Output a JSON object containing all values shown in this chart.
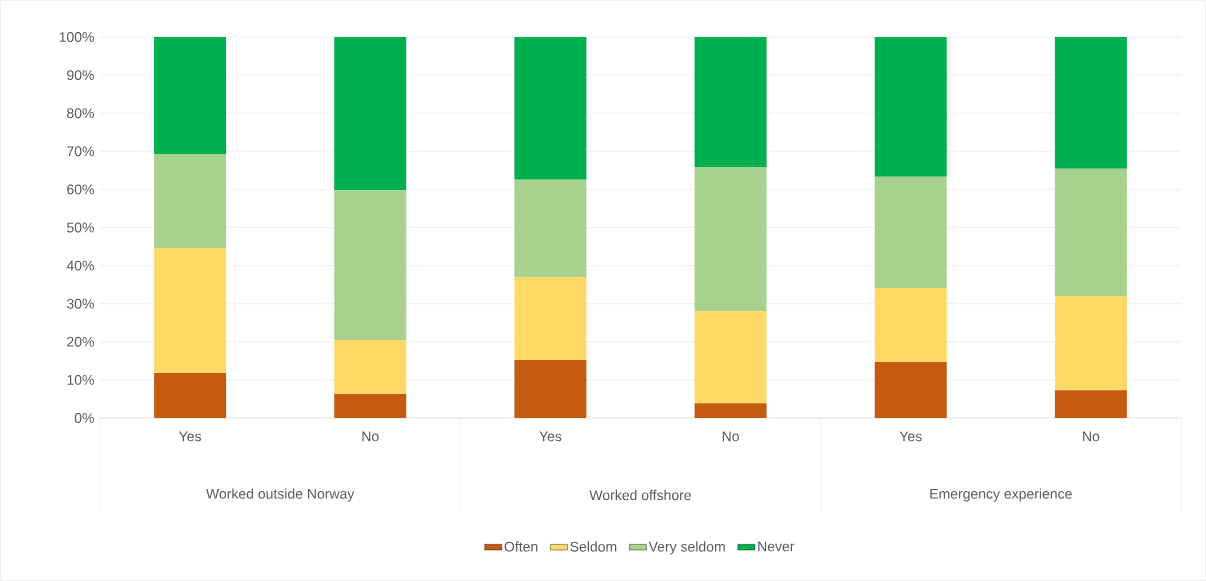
{
  "chart_data": {
    "type": "bar",
    "stacked": true,
    "categories": [
      "Yes",
      "No",
      "Yes",
      "No",
      "Yes",
      "No"
    ],
    "annotations": [
      "Worked outside Norway",
      "Worked offshore",
      "Emergency experience"
    ],
    "series": [
      {
        "name": "Often",
        "color": "#c55a11",
        "values": [
          11.8,
          6.3,
          15.2,
          3.9,
          14.7,
          7.3
        ]
      },
      {
        "name": "Seldom",
        "color": "#ffd966",
        "values": [
          32.8,
          14.2,
          21.8,
          24.2,
          19.4,
          24.7
        ]
      },
      {
        "name": "Very seldom",
        "color": "#a9d18e",
        "values": [
          24.7,
          39.3,
          25.5,
          37.8,
          29.2,
          33.4
        ]
      },
      {
        "name": "Never",
        "color": "#00b050",
        "values": [
          30.7,
          40.2,
          37.5,
          34.1,
          36.7,
          34.6
        ]
      }
    ],
    "ylim": [
      0,
      100
    ],
    "yticks": [
      {
        "value": 0,
        "label": "0%"
      },
      {
        "value": 10,
        "label": "10%"
      },
      {
        "value": 20,
        "label": "20%"
      },
      {
        "value": 30,
        "label": "30%"
      },
      {
        "value": 40,
        "label": "40%"
      },
      {
        "value": 50,
        "label": "50%"
      },
      {
        "value": 60,
        "label": "60%"
      },
      {
        "value": 70,
        "label": "70%"
      },
      {
        "value": 80,
        "label": "80%"
      },
      {
        "value": 90,
        "label": "90%"
      },
      {
        "value": 100,
        "label": "100%"
      }
    ],
    "grid": "y",
    "legend": "bottom"
  }
}
